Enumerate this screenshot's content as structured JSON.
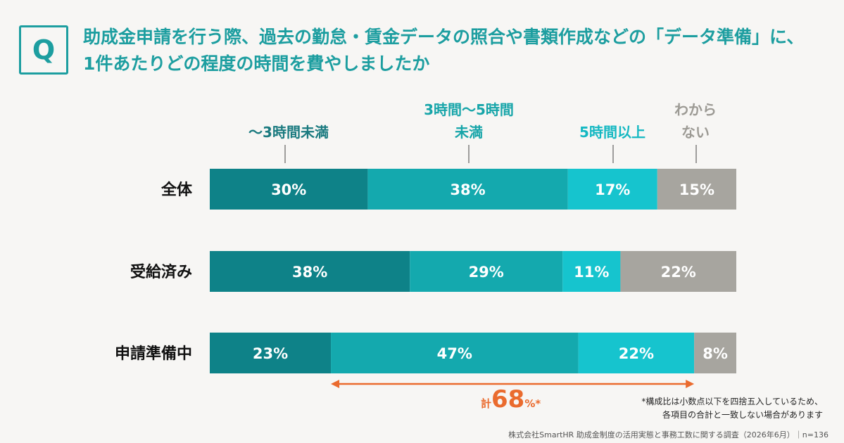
{
  "question": {
    "badge": "Q",
    "line1": "助成金申請を行う際、過去の勤怠・賃金データの照合や書類作成などの「データ準備」に、",
    "line2": "1件あたりどの程度の時間を費やしましたか"
  },
  "chart_data": {
    "type": "bar",
    "orientation": "horizontal",
    "stacked": true,
    "percent_stacked": true,
    "categories": [
      "全体",
      "受給済み",
      "申請準備中"
    ],
    "series": [
      {
        "name": "〜3時間未満",
        "values": [
          30,
          38,
          23
        ],
        "color": "#0e8288",
        "legend_color": "#1a7a7f"
      },
      {
        "name": "3時間〜5時間未満",
        "values": [
          38,
          29,
          47
        ],
        "color": "#14a9ae",
        "legend_color": "#17a5a9"
      },
      {
        "name": "5時間以上",
        "values": [
          17,
          11,
          22
        ],
        "color": "#16c4ce",
        "legend_color": "#14b8c2"
      },
      {
        "name": "わからない",
        "values": [
          15,
          22,
          8
        ],
        "color": "#a7a59f",
        "legend_color": "#9c9a94"
      }
    ],
    "value_suffix": "%",
    "legend_placement": "top",
    "annotation": {
      "pre": "計",
      "value": "68",
      "suffix": "%*",
      "spans_series": [
        "3時間〜5時間未満",
        "5時間以上"
      ],
      "category": "申請準備中",
      "color": "#ea6b2e"
    }
  },
  "note": {
    "line1": "*構成比は小数点以下を四捨五入しているため、",
    "line2": "各項目の合計と一致しない場合があります"
  },
  "source": "株式会社SmartHR 助成金制度の活用実態と事務工数に関する調査（2026年6月）｜n=136"
}
